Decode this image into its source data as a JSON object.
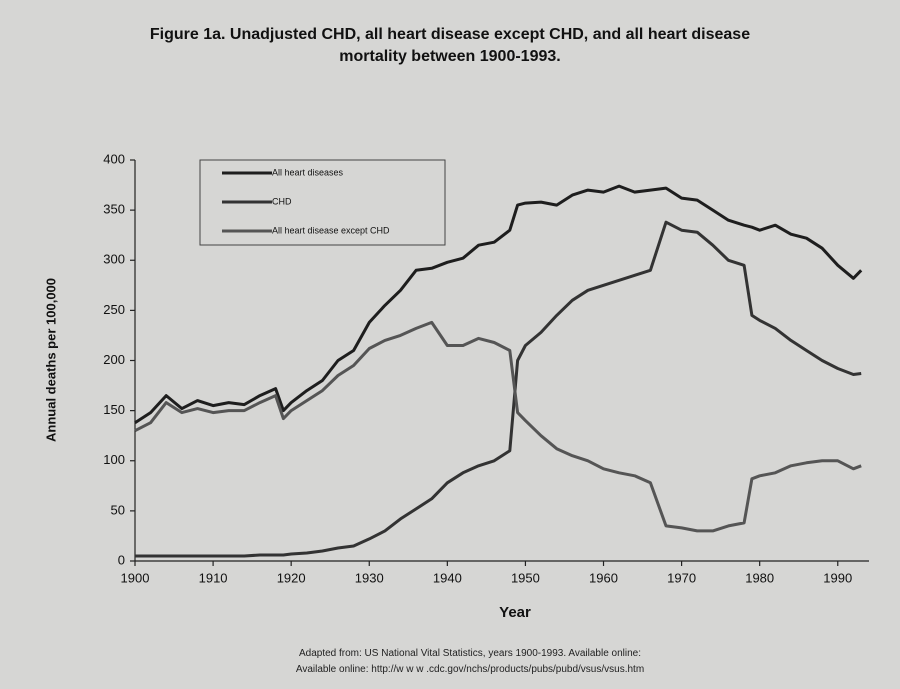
{
  "chart_data": {
    "type": "line",
    "title": "Figure 1a. Unadjusted CHD, all heart disease except CHD, and all heart disease mortality between 1900-1993.",
    "xlabel": "Year",
    "ylabel": "Annual deaths per 100,000",
    "source": [
      "Adapted from: US National Vital Statistics, years 1900-1993. Available online:",
      "Available online: http://w w w .cdc.gov/nchs/products/pubs/pubd/vsus/vsus.htm"
    ],
    "x": [
      1900,
      1902,
      1904,
      1906,
      1908,
      1910,
      1912,
      1914,
      1916,
      1918,
      1919,
      1920,
      1922,
      1924,
      1926,
      1928,
      1930,
      1932,
      1934,
      1936,
      1938,
      1940,
      1942,
      1944,
      1946,
      1948,
      1949,
      1950,
      1952,
      1954,
      1956,
      1958,
      1960,
      1962,
      1964,
      1966,
      1968,
      1970,
      1972,
      1974,
      1976,
      1978,
      1979,
      1980,
      1982,
      1984,
      1986,
      1988,
      1990,
      1992,
      1993
    ],
    "series": [
      {
        "name": "All heart diseases",
        "color": "#1e1e1e",
        "values": [
          138,
          148,
          165,
          152,
          160,
          155,
          158,
          156,
          165,
          172,
          150,
          158,
          170,
          180,
          200,
          210,
          238,
          255,
          270,
          290,
          292,
          298,
          302,
          315,
          318,
          330,
          355,
          357,
          358,
          355,
          365,
          370,
          368,
          374,
          368,
          370,
          372,
          362,
          360,
          350,
          340,
          335,
          333,
          330,
          335,
          326,
          322,
          312,
          295,
          282,
          290
        ]
      },
      {
        "name": "CHD",
        "color": "#333333",
        "values": [
          5,
          5,
          5,
          5,
          5,
          5,
          5,
          5,
          6,
          6,
          6,
          7,
          8,
          10,
          13,
          15,
          22,
          30,
          42,
          52,
          62,
          78,
          88,
          95,
          100,
          110,
          200,
          215,
          228,
          245,
          260,
          270,
          275,
          280,
          285,
          290,
          338,
          330,
          328,
          315,
          300,
          295,
          245,
          240,
          232,
          220,
          210,
          200,
          192,
          186,
          187
        ]
      },
      {
        "name": "All heart disease except CHD",
        "color": "#555555",
        "values": [
          130,
          138,
          158,
          148,
          152,
          148,
          150,
          150,
          158,
          165,
          142,
          150,
          160,
          170,
          185,
          195,
          212,
          220,
          225,
          232,
          238,
          215,
          215,
          222,
          218,
          210,
          148,
          140,
          125,
          112,
          105,
          100,
          92,
          88,
          85,
          78,
          35,
          33,
          30,
          30,
          35,
          38,
          82,
          85,
          88,
          95,
          98,
          100,
          100,
          92,
          95
        ]
      }
    ],
    "xlim": [
      1900,
      1994
    ],
    "ylim": [
      0,
      400
    ],
    "xticks": [
      1900,
      1910,
      1920,
      1930,
      1940,
      1950,
      1960,
      1970,
      1980,
      1990
    ],
    "yticks": [
      0,
      50,
      100,
      150,
      200,
      250,
      300,
      350,
      400
    ],
    "grid": false,
    "legend": "upper left"
  }
}
